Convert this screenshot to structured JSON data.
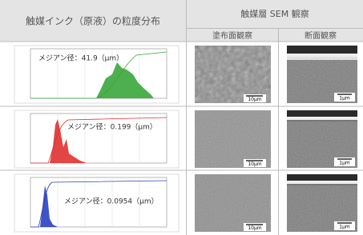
{
  "header": {
    "left": "触媒インク（原液）の粒度分布",
    "right": "触媒層 SEM 観察",
    "sub": [
      "塗布面観察",
      "断面観察"
    ]
  },
  "rows": [
    {
      "median": "メジアン径：41.9（μm）",
      "scales": [
        "10μm",
        "1μm"
      ]
    },
    {
      "median": "メジアン径：0.199（μm）",
      "scales": [
        "10μm",
        "1μm"
      ]
    },
    {
      "median": "メジアン径：0.0954（μm）",
      "scales": [
        "10μm",
        "1μm"
      ]
    }
  ]
}
